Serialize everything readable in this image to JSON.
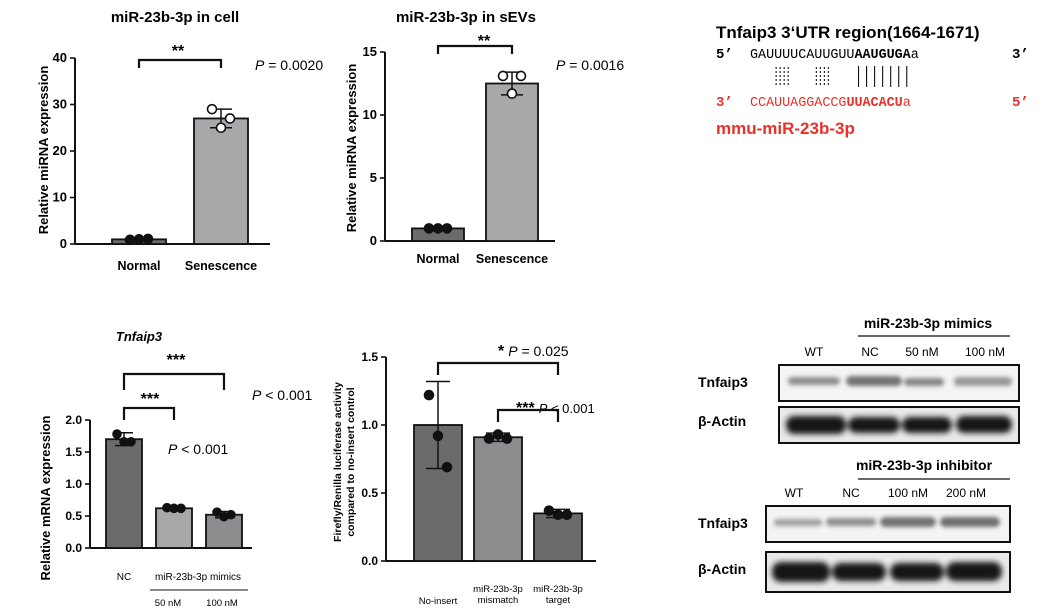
{
  "panel_a": {
    "title": "miR-23b-3p in cell",
    "sig": "**",
    "p_prefix": "P",
    "p_value": " = 0.0020",
    "chart_data": {
      "type": "bar",
      "ylabel": "Relative miRNA expression",
      "xlabel": "",
      "categories": [
        "Normal",
        "Senescence"
      ],
      "values": [
        1.0,
        27.0
      ],
      "error": [
        0.3,
        2.0
      ],
      "points": [
        [
          0.9,
          1.0,
          1.1
        ],
        [
          29.0,
          25.0,
          27.0
        ]
      ],
      "ylim": [
        0,
        40
      ],
      "yticks": [
        0,
        10,
        20,
        30,
        40
      ],
      "colors": [
        "#6b6b6b",
        "#a8a8aa"
      ]
    }
  },
  "panel_b": {
    "title": "miR-23b-3p in sEVs",
    "sig": "**",
    "p_prefix": "P",
    "p_value": " = 0.0016",
    "chart_data": {
      "type": "bar",
      "ylabel": "Relative miRNA expression",
      "xlabel": "",
      "categories": [
        "Normal",
        "Senescence"
      ],
      "values": [
        1.0,
        12.5
      ],
      "error": [
        0.1,
        0.9
      ],
      "points": [
        [
          1.0,
          1.0,
          1.0
        ],
        [
          13.1,
          11.7,
          13.1
        ]
      ],
      "ylim": [
        0,
        15
      ],
      "yticks": [
        0,
        5,
        10,
        15
      ],
      "colors": [
        "#6b6b6b",
        "#a8a8aa"
      ]
    }
  },
  "panel_c": {
    "title": "Tnfaip3",
    "sig_top": "***",
    "sig_mid": "***",
    "p_top": " < 0.001",
    "p_mid": " < 0.001",
    "p_prefix": "P",
    "group_label": "miR-23b-3p mimics",
    "chart_data": {
      "type": "bar",
      "ylabel": "Relative mRNA expression",
      "xlabel": "",
      "categories": [
        "NC",
        "50 nM",
        "100 nM"
      ],
      "values": [
        1.7,
        0.62,
        0.52
      ],
      "error": [
        0.1,
        0.03,
        0.05
      ],
      "points": [
        [
          1.78,
          1.66,
          1.66
        ],
        [
          0.63,
          0.62,
          0.62
        ],
        [
          0.56,
          0.49,
          0.52
        ]
      ],
      "ylim": [
        0,
        2.0
      ],
      "yticks": [
        "0.0",
        "0.5",
        "1.0",
        "1.5",
        "2.0"
      ],
      "colors": [
        "#6b6b6b",
        "#a8a8aa",
        "#8d8d8f"
      ]
    }
  },
  "panel_d": {
    "sig_top": "*",
    "p_top": " = 0.025",
    "sig_mid": "***",
    "p_mid": " < 0.001",
    "p_prefix": "P",
    "cat_lines": [
      [
        "No-insert"
      ],
      [
        "miR-23b-3p",
        "mismatch"
      ],
      [
        "miR-23b-3p",
        "target"
      ]
    ],
    "chart_data": {
      "type": "bar",
      "ylabel": "Firefly/Renilla luciferase activity compared to no-insert control",
      "ylabel_lines": [
        "Firefly/Renilla luciferase activity",
        "compared to no-insert control"
      ],
      "xlabel": "",
      "categories": [
        "No-insert",
        "miR-23b-3p mismatch",
        "miR-23b-3p target"
      ],
      "values": [
        1.0,
        0.91,
        0.35
      ],
      "error": [
        0.32,
        0.03,
        0.03
      ],
      "points": [
        [
          1.22,
          0.92,
          0.69
        ],
        [
          0.9,
          0.93,
          0.9
        ],
        [
          0.37,
          0.34,
          0.34
        ]
      ],
      "ylim": [
        0,
        1.5
      ],
      "yticks": [
        "0.0",
        "0.5",
        "1.0",
        "1.5"
      ],
      "colors": [
        "#6b6b6b",
        "#8d8d8f",
        "#6b6b6b"
      ]
    }
  },
  "sequence": {
    "title": "Tnfaip3 3‘UTR region(1664-1671)",
    "top_prefix": "5’",
    "top_plain": "GAUUUUCAUUGUU",
    "top_bold": "AAUGUGA",
    "top_tail": "a",
    "top_suffix": "3’",
    "bot_prefix": "3’",
    "bot_plain": "CCAUUAGGACCG",
    "bot_bold": "UUACACU",
    "bot_tail": "a",
    "bot_suffix": "5’",
    "mirna_label": "mmu-miR-23b-3p",
    "accent_color": "#e8312a"
  },
  "blot_mimics": {
    "group_label": "miR-23b-3p mimics",
    "lanes": [
      "WT",
      "NC",
      "50 nM",
      "100 nM"
    ],
    "rows": [
      "Tnfaip3",
      "β-Actin"
    ]
  },
  "blot_inhibitor": {
    "group_label": "miR-23b-3p inhibitor",
    "lanes": [
      "WT",
      "NC",
      "100 nM",
      "200 nM"
    ],
    "rows": [
      "Tnfaip3",
      "β-Actin"
    ]
  }
}
